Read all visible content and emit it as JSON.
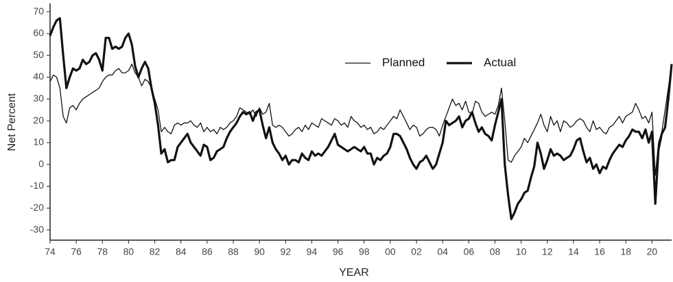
{
  "chart_data": {
    "type": "line",
    "xlabel": "YEAR",
    "ylabel": "Net Percent",
    "x": [
      1974,
      1974.25,
      1974.5,
      1974.75,
      1975,
      1975.25,
      1975.5,
      1975.75,
      1976,
      1976.25,
      1976.5,
      1976.75,
      1977,
      1977.25,
      1977.5,
      1977.75,
      1978,
      1978.25,
      1978.5,
      1978.75,
      1979,
      1979.25,
      1979.5,
      1979.75,
      1980,
      1980.25,
      1980.5,
      1980.75,
      1981,
      1981.25,
      1981.5,
      1981.75,
      1982,
      1982.25,
      1982.5,
      1982.75,
      1983,
      1983.25,
      1983.5,
      1983.75,
      1984,
      1984.25,
      1984.5,
      1984.75,
      1985,
      1985.25,
      1985.5,
      1985.75,
      1986,
      1986.25,
      1986.5,
      1986.75,
      1987,
      1987.25,
      1987.5,
      1987.75,
      1988,
      1988.25,
      1988.5,
      1988.75,
      1989,
      1989.25,
      1989.5,
      1989.75,
      1990,
      1990.25,
      1990.5,
      1990.75,
      1991,
      1991.25,
      1991.5,
      1991.75,
      1992,
      1992.25,
      1992.5,
      1992.75,
      1993,
      1993.25,
      1993.5,
      1993.75,
      1994,
      1994.25,
      1994.5,
      1994.75,
      1995,
      1995.25,
      1995.5,
      1995.75,
      1996,
      1996.25,
      1996.5,
      1996.75,
      1997,
      1997.25,
      1997.5,
      1997.75,
      1998,
      1998.25,
      1998.5,
      1998.75,
      1999,
      1999.25,
      1999.5,
      1999.75,
      2000,
      2000.25,
      2000.5,
      2000.75,
      2001,
      2001.25,
      2001.5,
      2001.75,
      2002,
      2002.25,
      2002.5,
      2002.75,
      2003,
      2003.25,
      2003.5,
      2003.75,
      2004,
      2004.25,
      2004.5,
      2004.75,
      2005,
      2005.25,
      2005.5,
      2005.75,
      2006,
      2006.25,
      2006.5,
      2006.75,
      2007,
      2007.25,
      2007.5,
      2007.75,
      2008,
      2008.25,
      2008.5,
      2008.75,
      2009,
      2009.25,
      2009.5,
      2009.75,
      2010,
      2010.25,
      2010.5,
      2010.75,
      2011,
      2011.25,
      2011.5,
      2011.75,
      2012,
      2012.25,
      2012.5,
      2012.75,
      2013,
      2013.25,
      2013.5,
      2013.75,
      2014,
      2014.25,
      2014.5,
      2014.75,
      2015,
      2015.25,
      2015.5,
      2015.75,
      2016,
      2016.25,
      2016.5,
      2016.75,
      2017,
      2017.25,
      2017.5,
      2017.75,
      2018,
      2018.25,
      2018.5,
      2018.75,
      2019,
      2019.25,
      2019.5,
      2019.75,
      2020,
      2020.25,
      2020.5,
      2020.75,
      2021,
      2021.25,
      2021.5
    ],
    "series": [
      {
        "name": "Planned",
        "color": "#111111",
        "width": 1.3,
        "values": [
          38,
          41,
          40,
          35,
          22,
          19,
          26,
          27,
          25,
          28,
          30,
          31,
          32,
          33,
          34,
          35,
          38,
          40,
          41,
          41,
          43,
          44,
          42,
          42,
          43,
          46,
          42,
          40,
          36,
          39,
          38,
          35,
          30,
          25,
          15,
          17,
          15,
          14,
          18,
          19,
          18,
          19,
          19,
          20,
          18,
          17,
          19,
          15,
          17,
          15,
          16,
          14,
          17,
          16,
          17,
          19,
          20,
          22,
          26,
          25,
          24,
          23,
          25,
          22,
          26,
          23,
          24,
          28,
          18,
          17,
          18,
          17,
          15,
          13,
          14,
          16,
          17,
          15,
          18,
          16,
          19,
          18,
          17,
          21,
          20,
          19,
          18,
          21,
          20,
          18,
          19,
          17,
          22,
          20,
          19,
          17,
          18,
          16,
          17,
          14,
          15,
          17,
          16,
          18,
          20,
          22,
          21,
          25,
          22,
          19,
          16,
          18,
          17,
          13,
          14,
          16,
          17,
          17,
          16,
          13,
          18,
          22,
          26,
          30,
          27,
          28,
          25,
          29,
          24,
          23,
          29,
          28,
          24,
          22,
          23,
          24,
          23,
          27,
          35,
          20,
          2,
          1,
          4,
          6,
          8,
          12,
          10,
          13,
          16,
          19,
          23,
          18,
          15,
          22,
          18,
          20,
          15,
          20,
          19,
          17,
          18,
          20,
          21,
          20,
          17,
          15,
          20,
          16,
          17,
          15,
          14,
          17,
          18,
          20,
          22,
          19,
          22,
          23,
          24,
          28,
          25,
          21,
          22,
          19,
          24,
          -5,
          10,
          15,
          25,
          35,
          46
        ]
      },
      {
        "name": "Actual",
        "color": "#111111",
        "width": 3.2,
        "values": [
          59,
          63,
          66,
          67,
          50,
          35,
          40,
          44,
          43,
          44,
          48,
          46,
          47,
          50,
          51,
          48,
          43,
          58,
          58,
          53,
          54,
          53,
          54,
          58,
          60,
          55,
          45,
          40,
          44,
          47,
          44,
          35,
          28,
          18,
          5,
          7,
          1,
          2,
          2,
          8,
          10,
          12,
          14,
          10,
          8,
          6,
          4,
          9,
          8,
          2,
          3,
          6,
          7,
          8,
          12,
          15,
          17,
          19,
          22,
          24,
          23,
          24,
          20,
          24,
          25,
          18,
          12,
          17,
          10,
          7,
          5,
          2,
          4,
          0,
          2,
          2,
          1,
          5,
          3,
          2,
          6,
          4,
          5,
          4,
          6,
          8,
          11,
          14,
          9,
          8,
          7,
          6,
          7,
          8,
          7,
          6,
          8,
          5,
          5,
          0,
          3,
          2,
          4,
          5,
          8,
          14,
          14,
          13,
          10,
          7,
          3,
          0,
          -2,
          1,
          2,
          4,
          1,
          -2,
          0,
          5,
          10,
          20,
          18,
          19,
          20,
          22,
          17,
          20,
          21,
          24,
          19,
          15,
          17,
          14,
          13,
          11,
          18,
          24,
          30,
          0,
          -14,
          -25,
          -22,
          -18,
          -16,
          -13,
          -12,
          -6,
          -1,
          10,
          5,
          -2,
          2,
          7,
          4,
          5,
          4,
          2,
          3,
          4,
          7,
          11,
          12,
          6,
          1,
          3,
          -2,
          0,
          -4,
          -1,
          -2,
          2,
          5,
          7,
          9,
          8,
          11,
          13,
          16,
          15,
          15,
          12,
          16,
          10,
          15,
          -18,
          7,
          14,
          17,
          30,
          46
        ]
      }
    ],
    "xlim": [
      1974,
      2021.5
    ],
    "ylim": [
      -34.7,
      73.8
    ],
    "xticks": [
      {
        "value": 1974,
        "label": "74"
      },
      {
        "value": 1976,
        "label": "76"
      },
      {
        "value": 1978,
        "label": "78"
      },
      {
        "value": 1980,
        "label": "80"
      },
      {
        "value": 1982,
        "label": "82"
      },
      {
        "value": 1984,
        "label": "84"
      },
      {
        "value": 1986,
        "label": "86"
      },
      {
        "value": 1988,
        "label": "88"
      },
      {
        "value": 1990,
        "label": "90"
      },
      {
        "value": 1992,
        "label": "92"
      },
      {
        "value": 1994,
        "label": "94"
      },
      {
        "value": 1996,
        "label": "96"
      },
      {
        "value": 1998,
        "label": "98"
      },
      {
        "value": 2000,
        "label": "00"
      },
      {
        "value": 2002,
        "label": "02"
      },
      {
        "value": 2004,
        "label": "04"
      },
      {
        "value": 2006,
        "label": "06"
      },
      {
        "value": 2008,
        "label": "08"
      },
      {
        "value": 2010,
        "label": "10"
      },
      {
        "value": 2012,
        "label": "12"
      },
      {
        "value": 2014,
        "label": "14"
      },
      {
        "value": 2016,
        "label": "16"
      },
      {
        "value": 2018,
        "label": "18"
      },
      {
        "value": 2020,
        "label": "20"
      }
    ],
    "yticks": [
      -30,
      -20,
      -10,
      0,
      10,
      20,
      30,
      40,
      50,
      60,
      70
    ],
    "legend": "top-center"
  }
}
